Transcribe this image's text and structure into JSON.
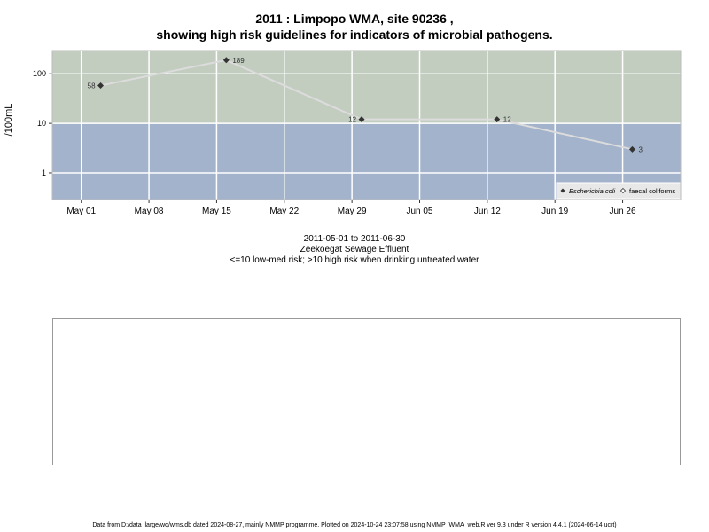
{
  "header": {
    "title_line1": "2011 : Limpopo WMA, site 90236 ,",
    "title_line2": "showing high risk guidelines for indicators of microbial pathogens."
  },
  "captions": {
    "date_range": "2011-05-01 to 2011-06-30",
    "site_name": "Zeekoegat Sewage Effluent",
    "risk_note": "<=10 low-med risk; >10 high risk when drinking untreated water"
  },
  "footer": {
    "text": "Data from D:/data_large/wq/wms.db dated 2024-08-27, mainly NMMP programme. Plotted on 2024-10-24 23:07:58 using NMMP_WMA_web.R ver 9.3 under R version 4.4.1 (2024-06-14 ucrt)"
  },
  "colors": {
    "high_risk_band": "#c2cdc0",
    "low_risk_band": "#a2b3cb",
    "grid": "#ffffff",
    "series_line": "#dcdcdc",
    "marker": "#333333"
  },
  "chart_data": {
    "type": "line",
    "y_scale": "log",
    "ylabel": "/100mL",
    "xlabel": "",
    "x_ticks": [
      "May 01",
      "May 08",
      "May 15",
      "May 22",
      "May 29",
      "Jun 05",
      "Jun 12",
      "Jun 19",
      "Jun 26"
    ],
    "x_tick_dates": [
      "2011-05-01",
      "2011-05-08",
      "2011-05-15",
      "2011-05-22",
      "2011-05-29",
      "2011-06-05",
      "2011-06-12",
      "2011-06-19",
      "2011-06-26"
    ],
    "y_ticks": [
      1,
      10,
      100
    ],
    "y_tick_labels": [
      "1",
      "10",
      "100"
    ],
    "threshold": 10,
    "grid": true,
    "legend_position": "bottom-right",
    "legend": [
      {
        "label": "Escherichia coli",
        "marker": "filled-diamond",
        "italic": true
      },
      {
        "label": "faecal coliforms",
        "marker": "open-diamond",
        "italic": false
      }
    ],
    "series": [
      {
        "name": "Escherichia coli",
        "points": [
          {
            "x": "2011-05-03",
            "y": 58,
            "label": "58"
          },
          {
            "x": "2011-05-16",
            "y": 189,
            "label": "189"
          },
          {
            "x": "2011-05-30",
            "y": 12,
            "label": "12"
          },
          {
            "x": "2011-06-13",
            "y": 12,
            "label": "12"
          },
          {
            "x": "2011-06-27",
            "y": 3,
            "label": "3"
          }
        ]
      }
    ]
  }
}
